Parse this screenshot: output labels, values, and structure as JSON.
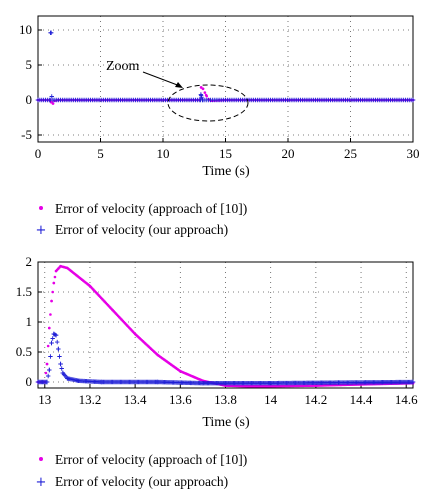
{
  "chart_data": [
    {
      "type": "line",
      "xlabel": "Time (s)",
      "ylabel": "",
      "xlim": [
        0,
        30
      ],
      "ylim": [
        -6,
        12
      ],
      "xticks": [
        0,
        5,
        10,
        15,
        20,
        25,
        30
      ],
      "yticks": [
        -5,
        0,
        5,
        10
      ],
      "grid": "dotted",
      "annotation": "Zoom",
      "legend": {
        "position": "below"
      },
      "series": [
        {
          "name": "Error of velocity (approach of [10])",
          "color": "#e600e6",
          "marker": "dot",
          "points": [
            [
              0,
              0
            ],
            [
              1.0,
              0
            ],
            [
              1.05,
              -0.3
            ],
            [
              1.2,
              -0.5
            ],
            [
              1.35,
              -0.1
            ],
            [
              1.6,
              0
            ],
            [
              12.95,
              0
            ],
            [
              13.05,
              1.8
            ],
            [
              13.2,
              1.6
            ],
            [
              13.45,
              0.7
            ],
            [
              13.65,
              0.1
            ],
            [
              13.85,
              -0.1
            ],
            [
              14.5,
              -0.05
            ],
            [
              15.0,
              0
            ],
            [
              30,
              0
            ]
          ]
        },
        {
          "name": "Error of velocity (our approach)",
          "color": "#1f1fd6",
          "marker": "plus",
          "points": [
            [
              0,
              0
            ],
            [
              0.98,
              0
            ],
            [
              1.0,
              9.6
            ],
            [
              1.05,
              9.6
            ],
            [
              1.1,
              0.5
            ],
            [
              1.2,
              0
            ],
            [
              13.0,
              0
            ],
            [
              13.03,
              0.8
            ],
            [
              13.08,
              0.4
            ],
            [
              13.15,
              0
            ],
            [
              30,
              0
            ]
          ]
        }
      ]
    },
    {
      "type": "line",
      "xlabel": "Time (s)",
      "ylabel": "",
      "xlim": [
        12.97,
        14.63
      ],
      "ylim": [
        -0.1,
        2.0
      ],
      "xticks": [
        13,
        13.2,
        13.4,
        13.6,
        13.8,
        14,
        14.2,
        14.4,
        14.6
      ],
      "yticks": [
        0,
        0.5,
        1,
        1.5,
        2
      ],
      "grid": "dotted",
      "legend": {
        "position": "below"
      },
      "series": [
        {
          "name": "Error of velocity (approach of [10])",
          "color": "#e600e6",
          "marker": "dot",
          "points": [
            [
              12.97,
              0
            ],
            [
              13.0,
              0
            ],
            [
              13.01,
              0.3
            ],
            [
              13.02,
              0.9
            ],
            [
              13.03,
              1.35
            ],
            [
              13.04,
              1.65
            ],
            [
              13.05,
              1.85
            ],
            [
              13.07,
              1.93
            ],
            [
              13.1,
              1.9
            ],
            [
              13.2,
              1.6
            ],
            [
              13.3,
              1.2
            ],
            [
              13.4,
              0.8
            ],
            [
              13.5,
              0.45
            ],
            [
              13.6,
              0.18
            ],
            [
              13.7,
              0.02
            ],
            [
              13.8,
              -0.06
            ],
            [
              13.9,
              -0.07
            ],
            [
              14.0,
              -0.07
            ],
            [
              14.2,
              -0.06
            ],
            [
              14.4,
              -0.04
            ],
            [
              14.63,
              -0.02
            ]
          ]
        },
        {
          "name": "Error of velocity (our approach)",
          "color": "#1f1fd6",
          "marker": "plus",
          "points": [
            [
              12.97,
              0
            ],
            [
              13.01,
              0
            ],
            [
              13.02,
              0.2
            ],
            [
              13.03,
              0.65
            ],
            [
              13.04,
              0.8
            ],
            [
              13.05,
              0.78
            ],
            [
              13.06,
              0.55
            ],
            [
              13.07,
              0.3
            ],
            [
              13.08,
              0.15
            ],
            [
              13.1,
              0.06
            ],
            [
              13.15,
              0.02
            ],
            [
              13.25,
              0
            ],
            [
              13.5,
              0
            ],
            [
              13.7,
              -0.02
            ],
            [
              14.0,
              -0.02
            ],
            [
              14.3,
              -0.01
            ],
            [
              14.63,
              0
            ]
          ]
        }
      ]
    }
  ]
}
